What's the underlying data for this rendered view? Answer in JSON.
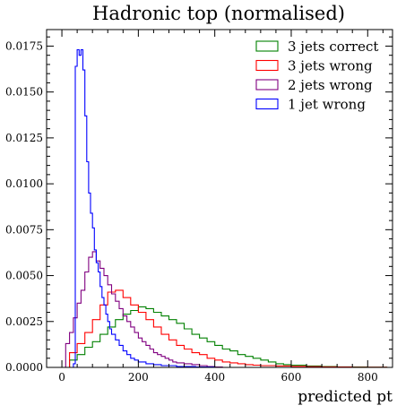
{
  "chart_data": {
    "type": "line",
    "title": "Hadronic top (normalised)",
    "xlabel": "predicted pt",
    "ylabel": "",
    "xlim": [
      -40,
      865
    ],
    "ylim": [
      0,
      0.0184
    ],
    "xticks": [
      0,
      200,
      400,
      600,
      800
    ],
    "xtick_labels": [
      "0",
      "200",
      "400",
      "600",
      "800"
    ],
    "yticks": [
      0,
      0.0025,
      0.005,
      0.0075,
      0.01,
      0.0125,
      0.015,
      0.0175
    ],
    "ytick_labels": [
      "0.0000",
      "0.0025",
      "0.0050",
      "0.0075",
      "0.0100",
      "0.0125",
      "0.0150",
      "0.0175"
    ],
    "legend_position": "top-right",
    "grid": false,
    "histtype": "step",
    "series": [
      {
        "name": "3 jets correct",
        "color": "#008000",
        "points": [
          [
            0,
            0
          ],
          [
            20,
            0.0004
          ],
          [
            40,
            0.0007
          ],
          [
            60,
            0.0011
          ],
          [
            80,
            0.0014
          ],
          [
            100,
            0.0018
          ],
          [
            120,
            0.0022
          ],
          [
            140,
            0.0026
          ],
          [
            160,
            0.0029
          ],
          [
            180,
            0.0031
          ],
          [
            200,
            0.0033
          ],
          [
            220,
            0.0032
          ],
          [
            240,
            0.003
          ],
          [
            260,
            0.0028
          ],
          [
            280,
            0.0026
          ],
          [
            300,
            0.0024
          ],
          [
            320,
            0.0021
          ],
          [
            340,
            0.0018
          ],
          [
            360,
            0.0016
          ],
          [
            380,
            0.0014
          ],
          [
            400,
            0.0012
          ],
          [
            420,
            0.001
          ],
          [
            440,
            0.0009
          ],
          [
            460,
            0.0007
          ],
          [
            480,
            0.0006
          ],
          [
            500,
            0.0005
          ],
          [
            520,
            0.0004
          ],
          [
            540,
            0.0003
          ],
          [
            560,
            0.0002
          ],
          [
            580,
            0.00015
          ],
          [
            600,
            0.00012
          ],
          [
            640,
            8e-05
          ],
          [
            680,
            5e-05
          ],
          [
            720,
            3e-05
          ],
          [
            760,
            2e-05
          ],
          [
            800,
            1e-05
          ],
          [
            850,
            0
          ]
        ]
      },
      {
        "name": "3 jets wrong",
        "color": "#ff0000",
        "points": [
          [
            0,
            0
          ],
          [
            20,
            0.0008
          ],
          [
            40,
            0.0013
          ],
          [
            60,
            0.0019
          ],
          [
            80,
            0.0026
          ],
          [
            100,
            0.0034
          ],
          [
            120,
            0.0041
          ],
          [
            140,
            0.0042
          ],
          [
            160,
            0.0038
          ],
          [
            180,
            0.0034
          ],
          [
            200,
            0.003
          ],
          [
            220,
            0.0026
          ],
          [
            240,
            0.0022
          ],
          [
            260,
            0.0018
          ],
          [
            280,
            0.0015
          ],
          [
            300,
            0.0012
          ],
          [
            320,
            0.001
          ],
          [
            340,
            0.0008
          ],
          [
            360,
            0.0007
          ],
          [
            380,
            0.0005
          ],
          [
            400,
            0.0004
          ],
          [
            420,
            0.0003
          ],
          [
            440,
            0.00025
          ],
          [
            460,
            0.0002
          ],
          [
            480,
            0.00015
          ],
          [
            500,
            0.00012
          ],
          [
            520,
            0.0001
          ],
          [
            560,
            8e-05
          ],
          [
            600,
            6e-05
          ],
          [
            640,
            4e-05
          ],
          [
            680,
            3e-05
          ],
          [
            720,
            2e-05
          ],
          [
            760,
            1e-05
          ],
          [
            800,
            1e-05
          ],
          [
            850,
            0
          ]
        ]
      },
      {
        "name": "2 jets wrong",
        "color": "#800080",
        "points": [
          [
            0,
            0
          ],
          [
            10,
            0.0013
          ],
          [
            20,
            0.0019
          ],
          [
            30,
            0.0027
          ],
          [
            40,
            0.0035
          ],
          [
            50,
            0.0042
          ],
          [
            60,
            0.0052
          ],
          [
            70,
            0.006
          ],
          [
            80,
            0.0063
          ],
          [
            90,
            0.0058
          ],
          [
            100,
            0.0054
          ],
          [
            110,
            0.005
          ],
          [
            120,
            0.0045
          ],
          [
            130,
            0.004
          ],
          [
            140,
            0.0036
          ],
          [
            150,
            0.0032
          ],
          [
            160,
            0.0028
          ],
          [
            170,
            0.0025
          ],
          [
            180,
            0.0022
          ],
          [
            190,
            0.0019
          ],
          [
            200,
            0.0016
          ],
          [
            210,
            0.0014
          ],
          [
            220,
            0.0012
          ],
          [
            230,
            0.001
          ],
          [
            240,
            0.0008
          ],
          [
            250,
            0.0007
          ],
          [
            260,
            0.0006
          ],
          [
            270,
            0.0005
          ],
          [
            280,
            0.0004
          ],
          [
            290,
            0.0003
          ],
          [
            300,
            0.00025
          ],
          [
            320,
            0.0002
          ],
          [
            340,
            0.00015
          ],
          [
            360,
            0.0001
          ],
          [
            380,
            5e-05
          ],
          [
            400,
            2e-05
          ],
          [
            420,
            0
          ]
        ]
      },
      {
        "name": "1 jet wrong",
        "color": "#0000ff",
        "points": [
          [
            0,
            0
          ],
          [
            30,
            0.0002
          ],
          [
            35,
            0.0164
          ],
          [
            40,
            0.0173
          ],
          [
            45,
            0.017
          ],
          [
            50,
            0.0173
          ],
          [
            55,
            0.0162
          ],
          [
            60,
            0.0137
          ],
          [
            65,
            0.0112
          ],
          [
            70,
            0.0095
          ],
          [
            75,
            0.0084
          ],
          [
            80,
            0.0076
          ],
          [
            85,
            0.0064
          ],
          [
            90,
            0.0057
          ],
          [
            95,
            0.0052
          ],
          [
            100,
            0.0044
          ],
          [
            105,
            0.0038
          ],
          [
            110,
            0.0034
          ],
          [
            115,
            0.0029
          ],
          [
            120,
            0.0025
          ],
          [
            125,
            0.0021
          ],
          [
            130,
            0.0018
          ],
          [
            140,
            0.0015
          ],
          [
            150,
            0.0012
          ],
          [
            160,
            0.0009
          ],
          [
            170,
            0.0007
          ],
          [
            180,
            0.0005
          ],
          [
            190,
            0.0004
          ],
          [
            200,
            0.0003
          ],
          [
            220,
            0.0002
          ],
          [
            240,
            0.00015
          ],
          [
            260,
            0.0001
          ],
          [
            300,
            5e-05
          ],
          [
            350,
            2e-05
          ],
          [
            400,
            0
          ]
        ]
      }
    ]
  }
}
